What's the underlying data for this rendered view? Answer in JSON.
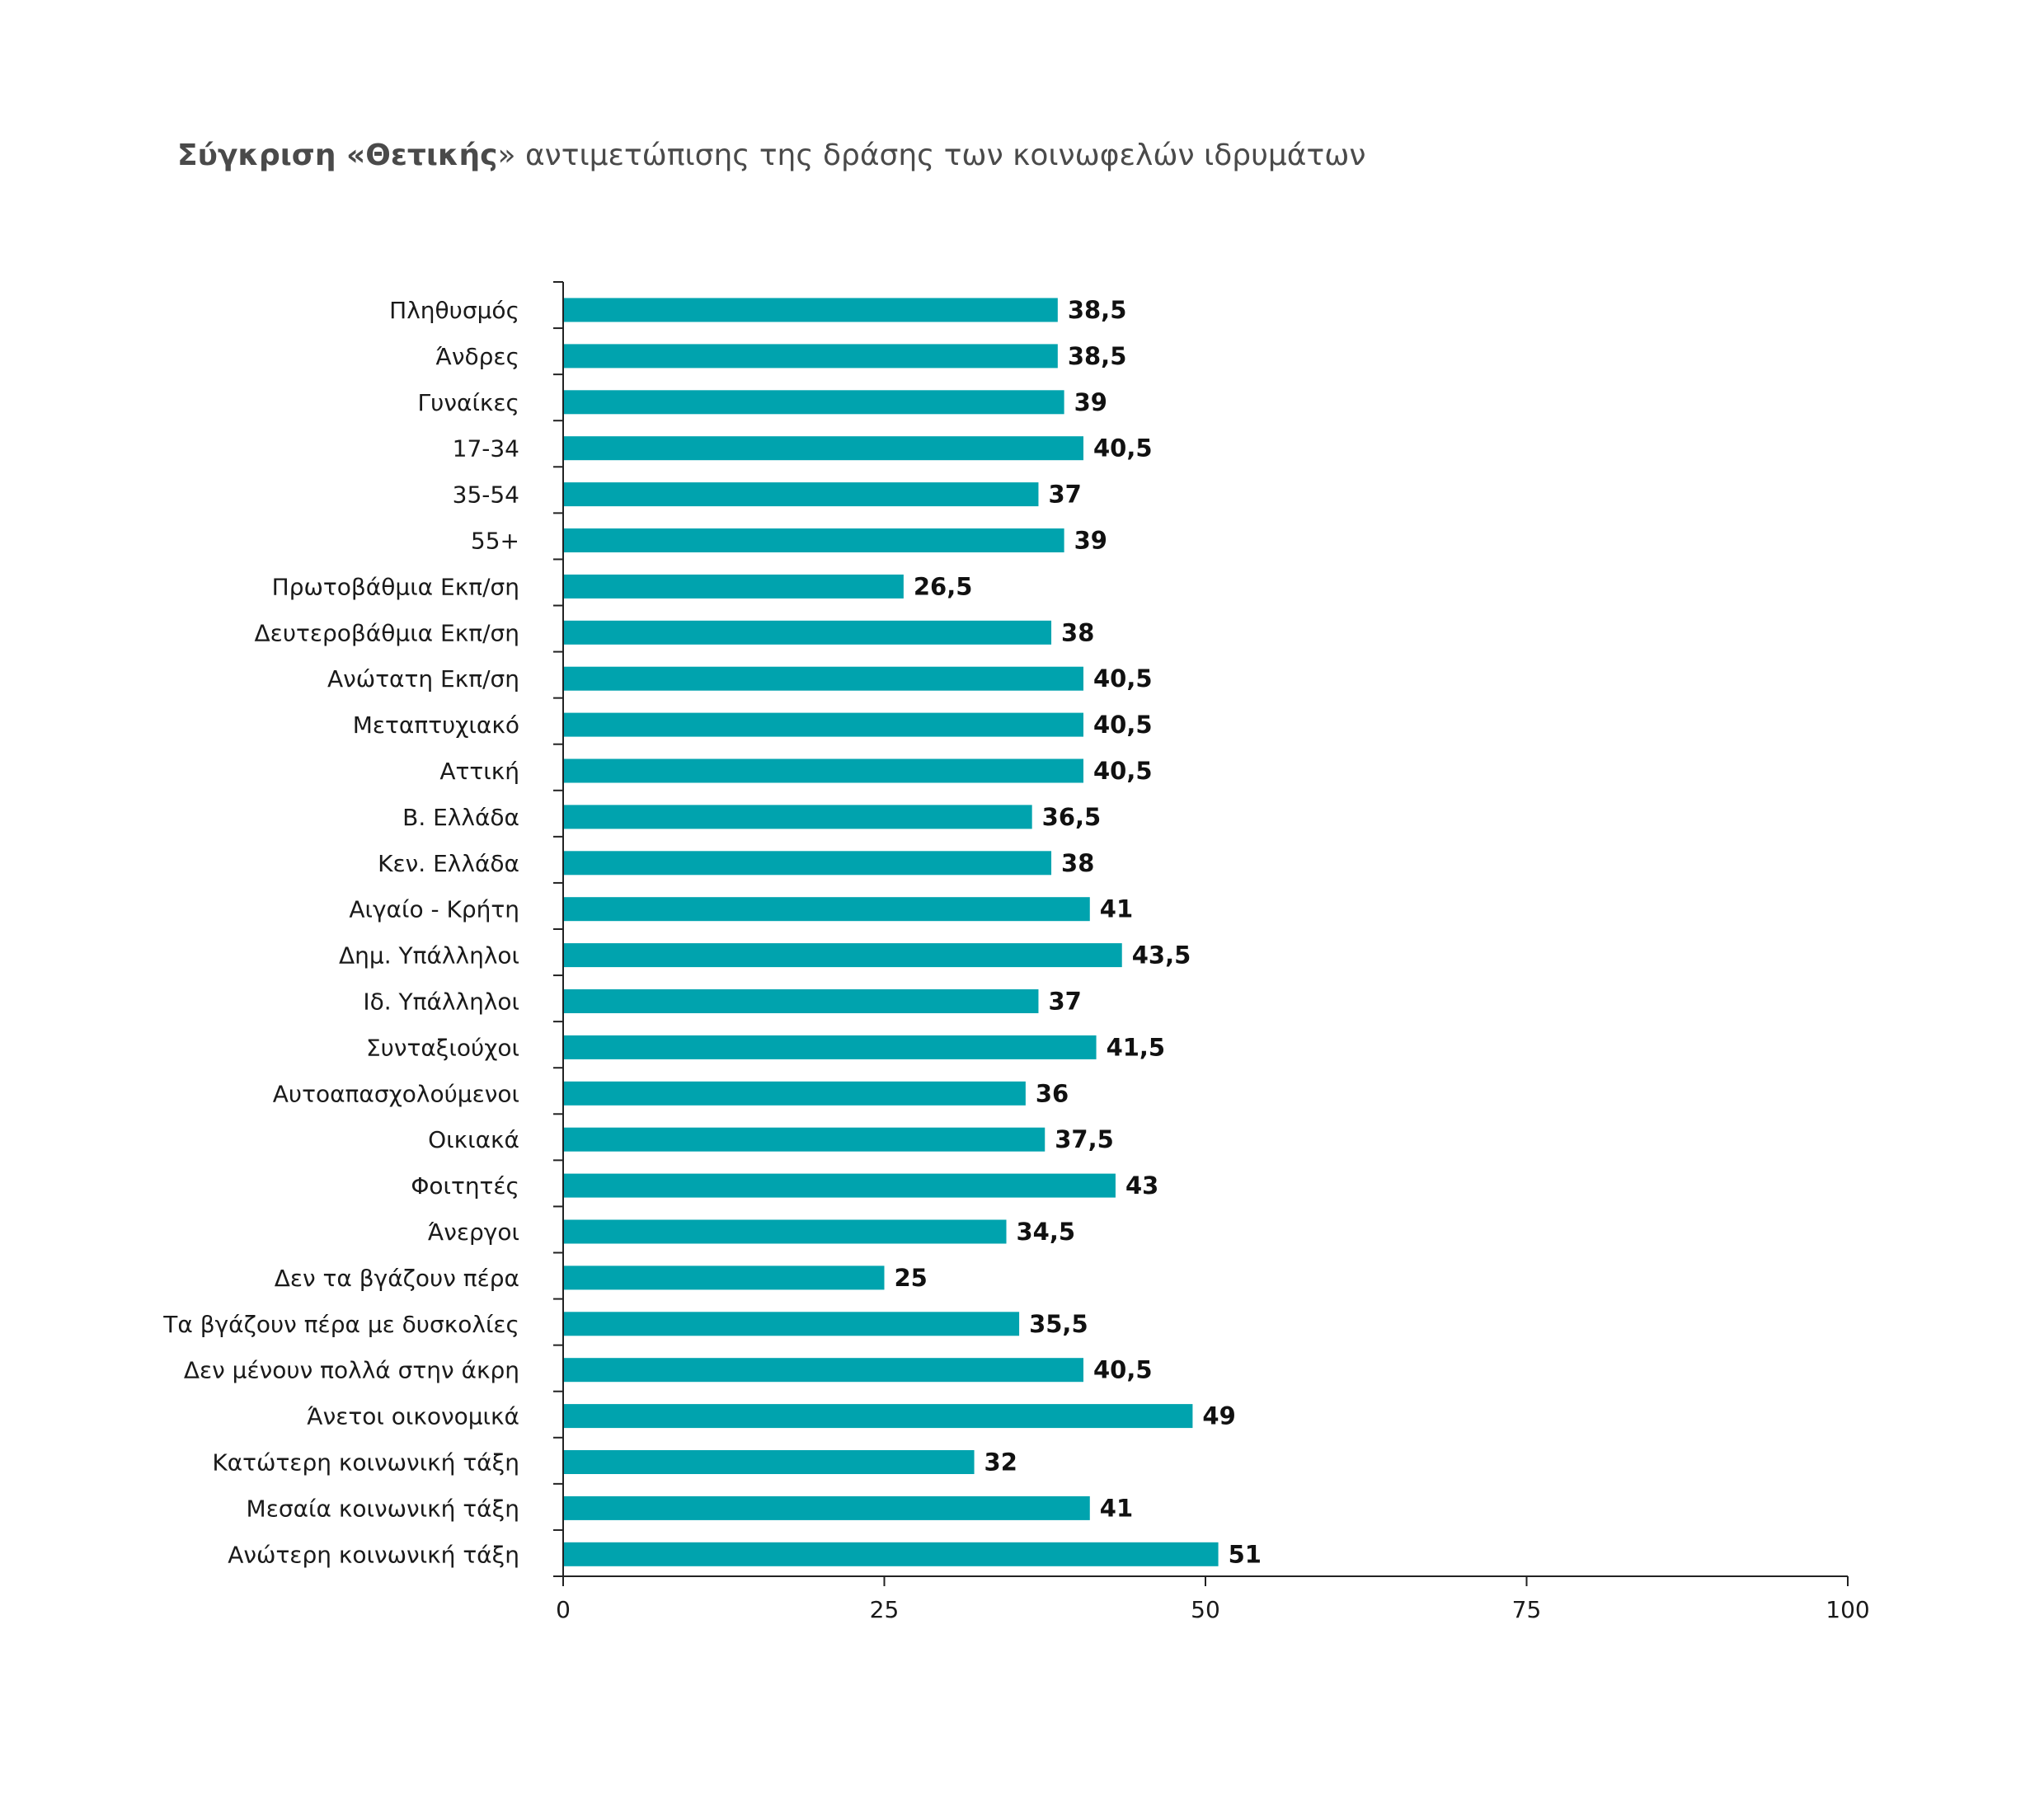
{
  "chart_data": {
    "type": "bar",
    "orientation": "horizontal",
    "title": {
      "pre": "Σύγκριση «",
      "emphasis": "Θετικής",
      "post": "» αντιμετώπισης της δράσης των κοινωφελών ιδρυμάτων"
    },
    "xlabel": "",
    "ylabel": "",
    "xlim": [
      0,
      100
    ],
    "ticks": [
      0,
      25,
      50,
      75,
      100
    ],
    "tick_labels": [
      "0",
      "25",
      "50",
      "75",
      "100"
    ],
    "grid": false,
    "bar_color": "#00a3ae",
    "categories": [
      "Πληθυσμός",
      "Άνδρες",
      "Γυναίκες",
      "17-34",
      "35-54",
      "55+",
      "Πρωτοβάθμια Εκπ/ση",
      "Δευτεροβάθμια Εκπ/ση",
      "Ανώτατη Εκπ/ση",
      "Μεταπτυχιακό",
      "Αττική",
      "Β. Ελλάδα",
      "Κεν. Ελλάδα",
      "Αιγαίο - Κρήτη",
      "Δημ. Υπάλληλοι",
      "Ιδ. Υπάλληλοι",
      "Συνταξιούχοι",
      "Αυτοαπασχολούμενοι",
      "Οικιακά",
      "Φοιτητές",
      "Άνεργοι",
      "Δεν τα βγάζουν πέρα",
      "Τα βγάζουν πέρα με δυσκολίες",
      "Δεν μένουν πολλά στην άκρη",
      "Άνετοι οικονομικά",
      "Κατώτερη κοινωνική τάξη",
      "Μεσαία κοινωνική τάξη",
      "Ανώτερη κοινωνική τάξη"
    ],
    "values": [
      38.5,
      38.5,
      39,
      40.5,
      37,
      39,
      26.5,
      38,
      40.5,
      40.5,
      40.5,
      36.5,
      38,
      41,
      43.5,
      37,
      41.5,
      36,
      37.5,
      43,
      34.5,
      25,
      35.5,
      40.5,
      49,
      32,
      41,
      51
    ],
    "value_labels": [
      "38,5",
      "38,5",
      "39",
      "40,5",
      "37",
      "39",
      "26,5",
      "38",
      "40,5",
      "40,5",
      "40,5",
      "36,5",
      "38",
      "41",
      "43,5",
      "37",
      "41,5",
      "36",
      "37,5",
      "43",
      "34,5",
      "25",
      "35,5",
      "40,5",
      "49",
      "32",
      "41",
      "51"
    ]
  }
}
